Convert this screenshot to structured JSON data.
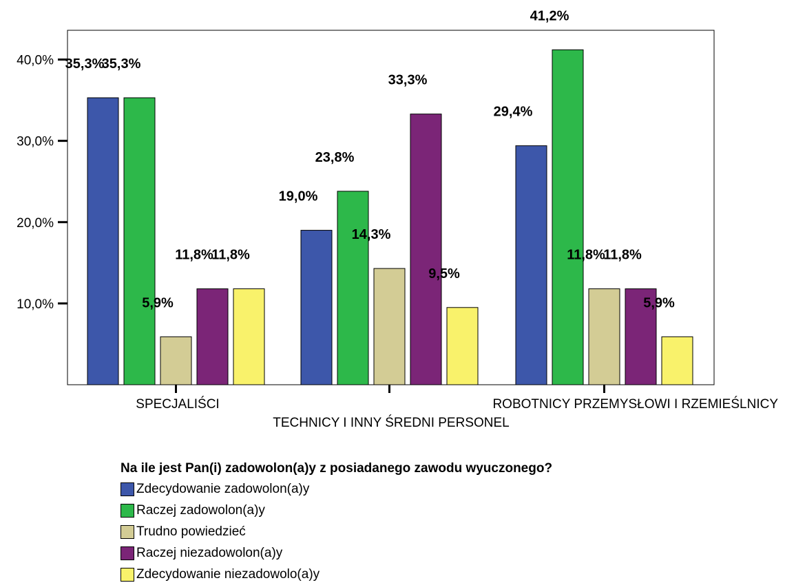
{
  "chart_data": {
    "type": "bar",
    "categories": [
      "SPECJALIŚCI",
      "TECHNICY I INNY ŚREDNI PERSONEL",
      "ROBOTNICY PRZEMYSŁOWI I RZEMIEŚLNICY"
    ],
    "series": [
      {
        "name": "Zdecydowanie zadowolon(a)y",
        "color": "#3d57aa",
        "values": [
          35.3,
          19.0,
          29.4
        ],
        "labels": [
          "35,3%",
          "19,0%",
          "29,4%"
        ]
      },
      {
        "name": "Raczej zadowolon(a)y",
        "color": "#2db84a",
        "values": [
          35.3,
          23.8,
          41.2
        ],
        "labels": [
          "35,3%",
          "23,8%",
          "41,2%"
        ]
      },
      {
        "name": "Trudno powiedzieć",
        "color": "#d3cc95",
        "values": [
          5.9,
          14.3,
          11.8
        ],
        "labels": [
          "5,9%",
          "14,3%",
          "11,8%"
        ]
      },
      {
        "name": "Raczej niezadowolon(a)y",
        "color": "#7b2577",
        "values": [
          11.8,
          33.3,
          11.8
        ],
        "labels": [
          "11,8%",
          "33,3%",
          "11,8%"
        ]
      },
      {
        "name": "Zdecydowanie niezadowolo(a)y",
        "color": "#f9f26b",
        "values": [
          11.8,
          9.5,
          5.9
        ],
        "labels": [
          "11,8%",
          "9,5%",
          "5,9%"
        ]
      }
    ],
    "ylim": [
      0,
      40.0
    ],
    "yticks": [
      10,
      20,
      30,
      40
    ],
    "ytick_labels": [
      "10,0%",
      "20,0%",
      "30,0%",
      "40,0%"
    ],
    "legend_title": "Na ile jest Pan(i) zadowolon(a)y z posiadanego zawodu wyuczonego?",
    "legend_position": "bottom",
    "grid": false
  }
}
